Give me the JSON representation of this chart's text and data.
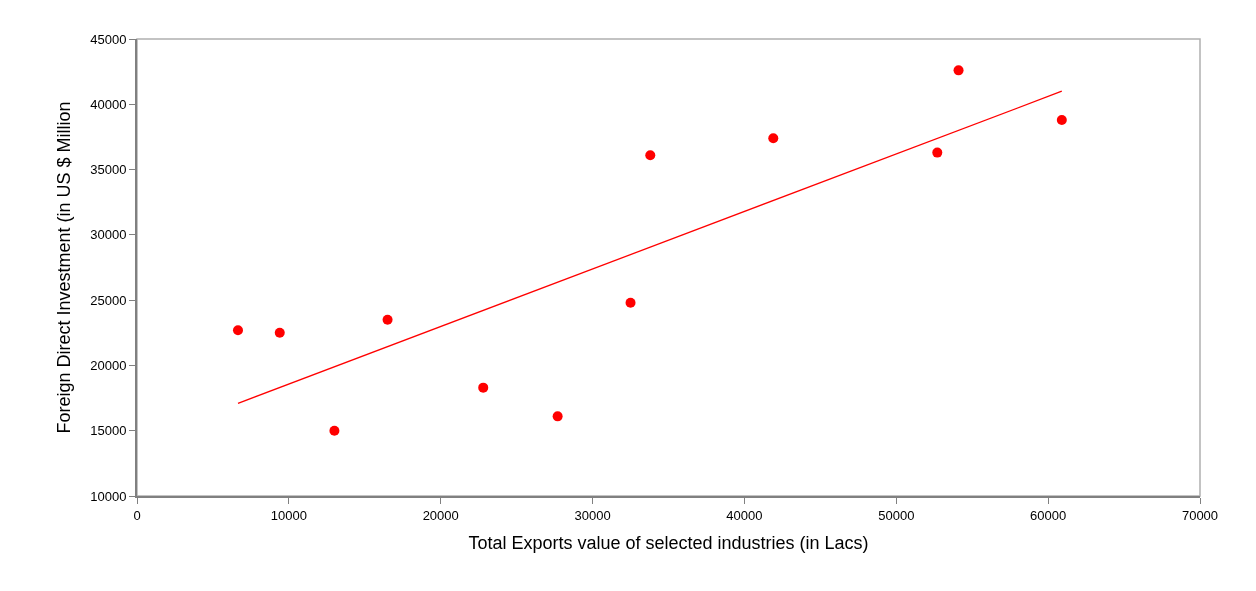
{
  "chart_data": {
    "type": "scatter",
    "xlabel": "Total Exports value of selected industries (in Lacs)",
    "ylabel": "Foreign Direct Investment (in US $ Million",
    "series": [
      {
        "color": "#ff0000",
        "marker": "circle",
        "x": [
          6650,
          9400,
          13000,
          16500,
          22800,
          27700,
          32500,
          33800,
          41900,
          52700,
          54100,
          60900
        ],
        "values": [
          22700,
          22500,
          15000,
          23500,
          18300,
          16100,
          24800,
          36100,
          37400,
          36300,
          42600,
          38800
        ]
      },
      {
        "type": "line",
        "color": "#ff0000",
        "line_style": "solid",
        "x": [
          6650,
          60900
        ],
        "values": [
          17100,
          41000
        ]
      }
    ],
    "xlim": [
      0,
      70000
    ],
    "xticks": [
      0,
      10000,
      20000,
      30000,
      40000,
      50000,
      60000,
      70000
    ],
    "ylim": [
      10000,
      45000
    ],
    "yticks": [
      10000,
      15000,
      20000,
      25000,
      30000,
      35000,
      40000,
      45000
    ],
    "grid": false
  }
}
